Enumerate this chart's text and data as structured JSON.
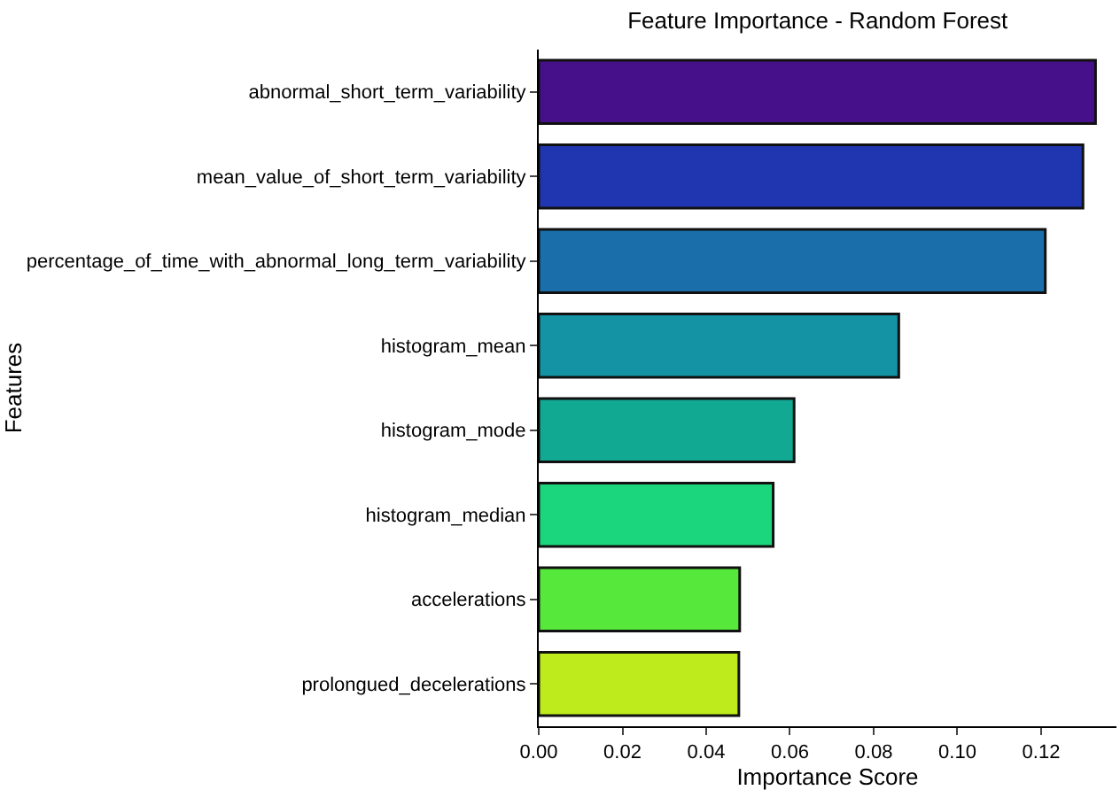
{
  "chart_data": {
    "type": "bar",
    "orientation": "horizontal",
    "title": "Feature Importance - Random Forest",
    "xlabel": "Importance Score",
    "ylabel": "Features",
    "categories": [
      "abnormal_short_term_variability",
      "mean_value_of_short_term_variability",
      "percentage_of_time_with_abnormal_long_term_variability",
      "histogram_mean",
      "histogram_mode",
      "histogram_median",
      "accelerations",
      "prolongued_decelerations"
    ],
    "values": [
      0.133,
      0.13,
      0.121,
      0.086,
      0.061,
      0.056,
      0.048,
      0.0478
    ],
    "colors": [
      "#46108a",
      "#1f36b0",
      "#1a6fab",
      "#1393a4",
      "#12a993",
      "#1bd67c",
      "#56e83b",
      "#bdeb1c"
    ],
    "xlim": [
      0,
      0.138
    ],
    "xticks": [
      {
        "value": 0,
        "label": "0.00"
      },
      0.02,
      0.04,
      0.06,
      0.08,
      {
        "value": 0.1,
        "label": "0.10"
      },
      0.12
    ]
  }
}
